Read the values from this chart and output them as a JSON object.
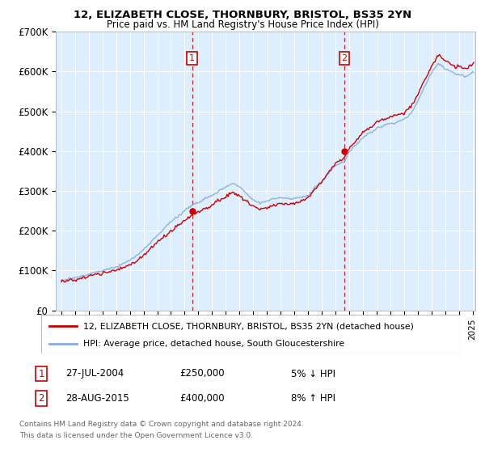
{
  "title_line1": "12, ELIZABETH CLOSE, THORNBURY, BRISTOL, BS35 2YN",
  "title_line2": "Price paid vs. HM Land Registry's House Price Index (HPI)",
  "ylim": [
    0,
    700000
  ],
  "yticks": [
    0,
    100000,
    200000,
    300000,
    400000,
    500000,
    600000,
    700000
  ],
  "ytick_labels": [
    "£0",
    "£100K",
    "£200K",
    "£300K",
    "£400K",
    "£500K",
    "£600K",
    "£700K"
  ],
  "xlim_start": 1994.6,
  "xlim_end": 2025.2,
  "bg_color": "#ddeeff",
  "grid_color": "#ffffff",
  "sale1_date": 2004.55,
  "sale1_price": 250000,
  "sale1_label": "1",
  "sale1_text": "27-JUL-2004",
  "sale1_amount": "£250,000",
  "sale1_pct": "5% ↓ HPI",
  "sale2_date": 2015.64,
  "sale2_price": 400000,
  "sale2_label": "2",
  "sale2_text": "28-AUG-2015",
  "sale2_amount": "£400,000",
  "sale2_pct": "8% ↑ HPI",
  "hpi_color": "#88aadd",
  "price_color": "#cc0000",
  "legend_label1": "12, ELIZABETH CLOSE, THORNBURY, BRISTOL, BS35 2YN (detached house)",
  "legend_label2": "HPI: Average price, detached house, South Gloucestershire",
  "footnote1": "Contains HM Land Registry data © Crown copyright and database right 2024.",
  "footnote2": "This data is licensed under the Open Government Licence v3.0."
}
